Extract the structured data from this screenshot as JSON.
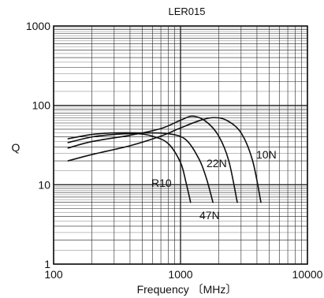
{
  "chart_data": {
    "type": "line",
    "title": "LER015",
    "xlabel": "Frequency 〔MHz〕",
    "ylabel": "Q",
    "x_scale": "log",
    "y_scale": "log",
    "xlim": [
      100,
      10000
    ],
    "ylim": [
      1,
      1000
    ],
    "x_ticks": [
      "100",
      "1000",
      "10000"
    ],
    "y_ticks": [
      "1",
      "10",
      "100",
      "1000"
    ],
    "grid": true,
    "legend": "none",
    "series": [
      {
        "name": "R10",
        "x": [
          130,
          200,
          300,
          450,
          600,
          800,
          1000,
          1100,
          1200
        ],
        "y": [
          34,
          40,
          43,
          44,
          41,
          33,
          19,
          11,
          6
        ]
      },
      {
        "name": "47N",
        "x": [
          130,
          200,
          300,
          500,
          800,
          1100,
          1400,
          1600,
          1800
        ],
        "y": [
          38,
          43,
          45,
          45,
          44,
          37,
          21,
          12,
          6
        ]
      },
      {
        "name": "22N",
        "x": [
          130,
          200,
          400,
          700,
          1000,
          1250,
          1600,
          2000,
          2400,
          2800
        ],
        "y": [
          29,
          35,
          42,
          51,
          65,
          73,
          62,
          41,
          20,
          6
        ]
      },
      {
        "name": "10N",
        "x": [
          130,
          200,
          400,
          700,
          1000,
          1400,
          1800,
          2300,
          3000,
          3700,
          4300
        ],
        "y": [
          20,
          24,
          31,
          41,
          52,
          64,
          70,
          65,
          45,
          20,
          6
        ]
      }
    ],
    "annotations": [
      "R10",
      "47N",
      "22N",
      "10N"
    ]
  }
}
